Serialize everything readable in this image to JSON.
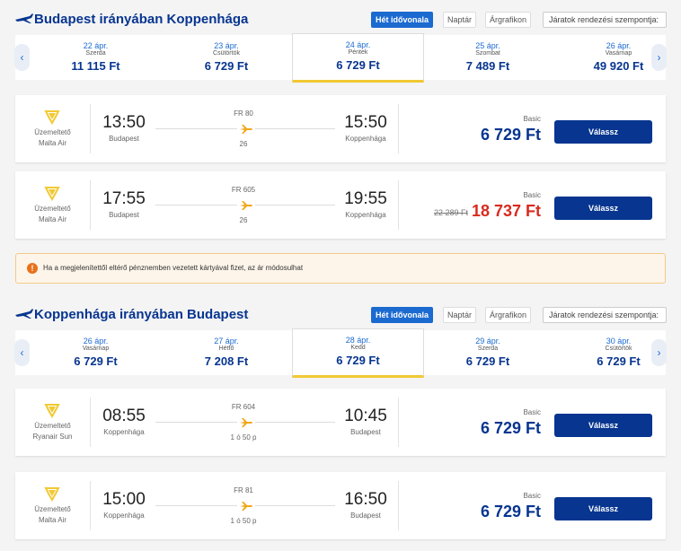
{
  "sections": [
    {
      "title": "Budapest irányában Koppenhága",
      "view_tabs": [
        "Hét idővonala",
        "Naptár",
        "Árgrafikon"
      ],
      "sort_label": "Járatok rendezési szempontja:",
      "selected_date": 2,
      "dates": [
        {
          "date": "22 ápr.",
          "day": "Szerda",
          "price": "11 115 Ft"
        },
        {
          "date": "23 ápr.",
          "day": "Csütörtök",
          "price": "6 729 Ft"
        },
        {
          "date": "24 ápr.",
          "day": "Péntek",
          "price": "6 729 Ft"
        },
        {
          "date": "25 ápr.",
          "day": "Szombat",
          "price": "7 489 Ft"
        },
        {
          "date": "26 ápr.",
          "day": "Vasárnap",
          "price": "49 920 Ft"
        }
      ],
      "flights": [
        {
          "operator_label": "Üzemeltető",
          "operator": "Malta Air",
          "dep_time": "13:50",
          "dep_city": "Budapest",
          "flight_no": "FR 80",
          "duration": "26",
          "arr_time": "15:50",
          "arr_city": "Koppenhága",
          "fare": "Basic",
          "price": "6 729 Ft",
          "button": "Válassz"
        },
        {
          "operator_label": "Üzemeltető",
          "operator": "Malta Air",
          "dep_time": "17:55",
          "dep_city": "Budapest",
          "flight_no": "FR 605",
          "duration": "26",
          "arr_time": "19:55",
          "arr_city": "Koppenhága",
          "fare": "Basic",
          "old_price": "22 289 Ft",
          "price": "18 737 Ft",
          "button": "Válassz"
        }
      ]
    },
    {
      "title": "Koppenhága irányában Budapest",
      "view_tabs": [
        "Hét idővonala",
        "Naptár",
        "Árgrafikon"
      ],
      "sort_label": "Járatok rendezési szempontja:",
      "selected_date": 2,
      "dates": [
        {
          "date": "26 ápr.",
          "day": "Vasárnap",
          "price": "6 729 Ft"
        },
        {
          "date": "27 ápr.",
          "day": "Hétfő",
          "price": "7 208 Ft"
        },
        {
          "date": "28 ápr.",
          "day": "Kedd",
          "price": "6 729 Ft"
        },
        {
          "date": "29 ápr.",
          "day": "Szerda",
          "price": "6 729 Ft"
        },
        {
          "date": "30 ápr.",
          "day": "Csütörtök",
          "price": "6 729 Ft"
        }
      ],
      "flights": [
        {
          "operator_label": "Üzemeltető",
          "operator": "Ryanair Sun",
          "dep_time": "08:55",
          "dep_city": "Koppenhága",
          "flight_no": "FR 604",
          "duration": "1 ó 50 p",
          "arr_time": "10:45",
          "arr_city": "Budapest",
          "fare": "Basic",
          "price": "6 729 Ft",
          "button": "Válassz"
        },
        {
          "operator_label": "Üzemeltető",
          "operator": "Malta Air",
          "dep_time": "15:00",
          "dep_city": "Koppenhága",
          "flight_no": "FR 81",
          "duration": "1 ó 50 p",
          "arr_time": "16:50",
          "arr_city": "Budapest",
          "fare": "Basic",
          "price": "6 729 Ft",
          "button": "Válassz"
        }
      ]
    }
  ],
  "notice": "Ha a megjelenítettől eltérő pénznemben vezetett kártyával fizet, az ár módosulhat"
}
